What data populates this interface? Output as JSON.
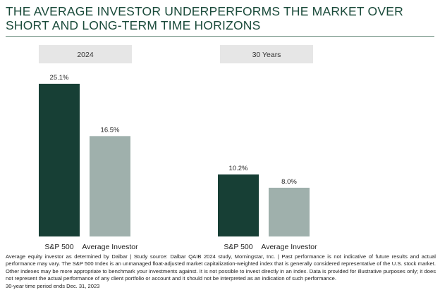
{
  "title": "THE AVERAGE INVESTOR UNDERPERFORMS THE MARKET OVER SHORT AND LONG-TERM TIME HORIZONS",
  "chart_data": {
    "type": "bar",
    "panels": [
      {
        "label": "2024",
        "categories": [
          "S&P 500",
          "Average Investor"
        ],
        "values": [
          25.1,
          16.5
        ],
        "value_labels": [
          "25.1%",
          "16.5%"
        ]
      },
      {
        "label": "30 Years",
        "categories": [
          "S&P 500",
          "Average Investor"
        ],
        "values": [
          10.2,
          8.0
        ],
        "value_labels": [
          "10.2%",
          "8.0%"
        ]
      }
    ],
    "colors": [
      "#173f35",
      "#9fb0ac"
    ],
    "panel_header_color": "#e6e6e6"
  },
  "footnote": {
    "line1": "Average equity investor as determined by Dalbar | Study source: Dalbar QAIB 2024 study, Morningstar, Inc. | Past performance is not indicative of future results and actual performance may vary. The S&P 500 Index is an unmanaged float-adjusted market capitalization-weighted index that is generally considered representative of the U.S. stock market. Other indexes may be more appropriate to benchmark your investments against. It is not possible to invest directly in an index. Data is provided for illustrative purposes only; it does not represent the actual performance of any client portfolio or account and it should not be interpreted as an indication of such performance.",
    "line2": "30-year time period ends Dec. 31, 2023"
  }
}
